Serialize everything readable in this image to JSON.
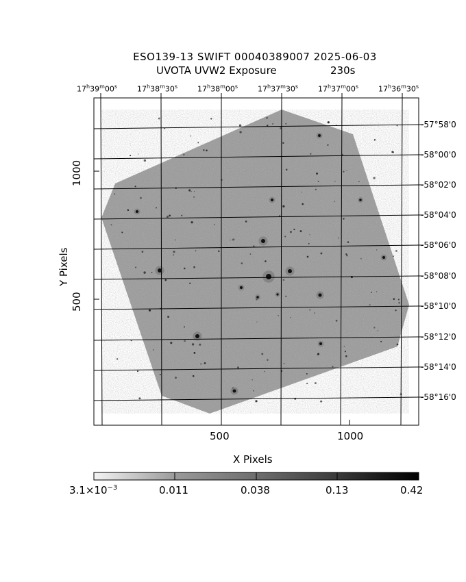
{
  "title": {
    "line1": "ESO139-13 SWIFT 00040389007 2025-06-03",
    "line2": "UVOTA UVW2 Exposure",
    "exposure": "230s"
  },
  "ra_ticks": [
    {
      "h": "17",
      "m": "39",
      "s": "00"
    },
    {
      "h": "17",
      "m": "38",
      "s": "30"
    },
    {
      "h": "17",
      "m": "38",
      "s": "00"
    },
    {
      "h": "17",
      "m": "37",
      "s": "30"
    },
    {
      "h": "17",
      "m": "37",
      "s": "00"
    },
    {
      "h": "17",
      "m": "36",
      "s": "30"
    }
  ],
  "dec_ticks": [
    "-57°58'0",
    "-58°00'0",
    "-58°02'0",
    "-58°04'0",
    "-58°06'0",
    "-58°08'0",
    "-58°10'0",
    "-58°12'0",
    "-58°14'0",
    "-58°16'0"
  ],
  "axes": {
    "xlabel": "X Pixels",
    "ylabel": "Y Pixels",
    "x_ticks": [
      "500",
      "1000"
    ],
    "y_ticks": [
      "1000",
      "500"
    ]
  },
  "colorbar": {
    "labels": [
      "3.1×10",
      "0.011",
      "0.038",
      "0.13",
      "0.42"
    ],
    "exponent": "−3"
  },
  "colors": {
    "background": "#ffffff",
    "ink": "#000000",
    "image_gray": "#8a8a8a"
  }
}
